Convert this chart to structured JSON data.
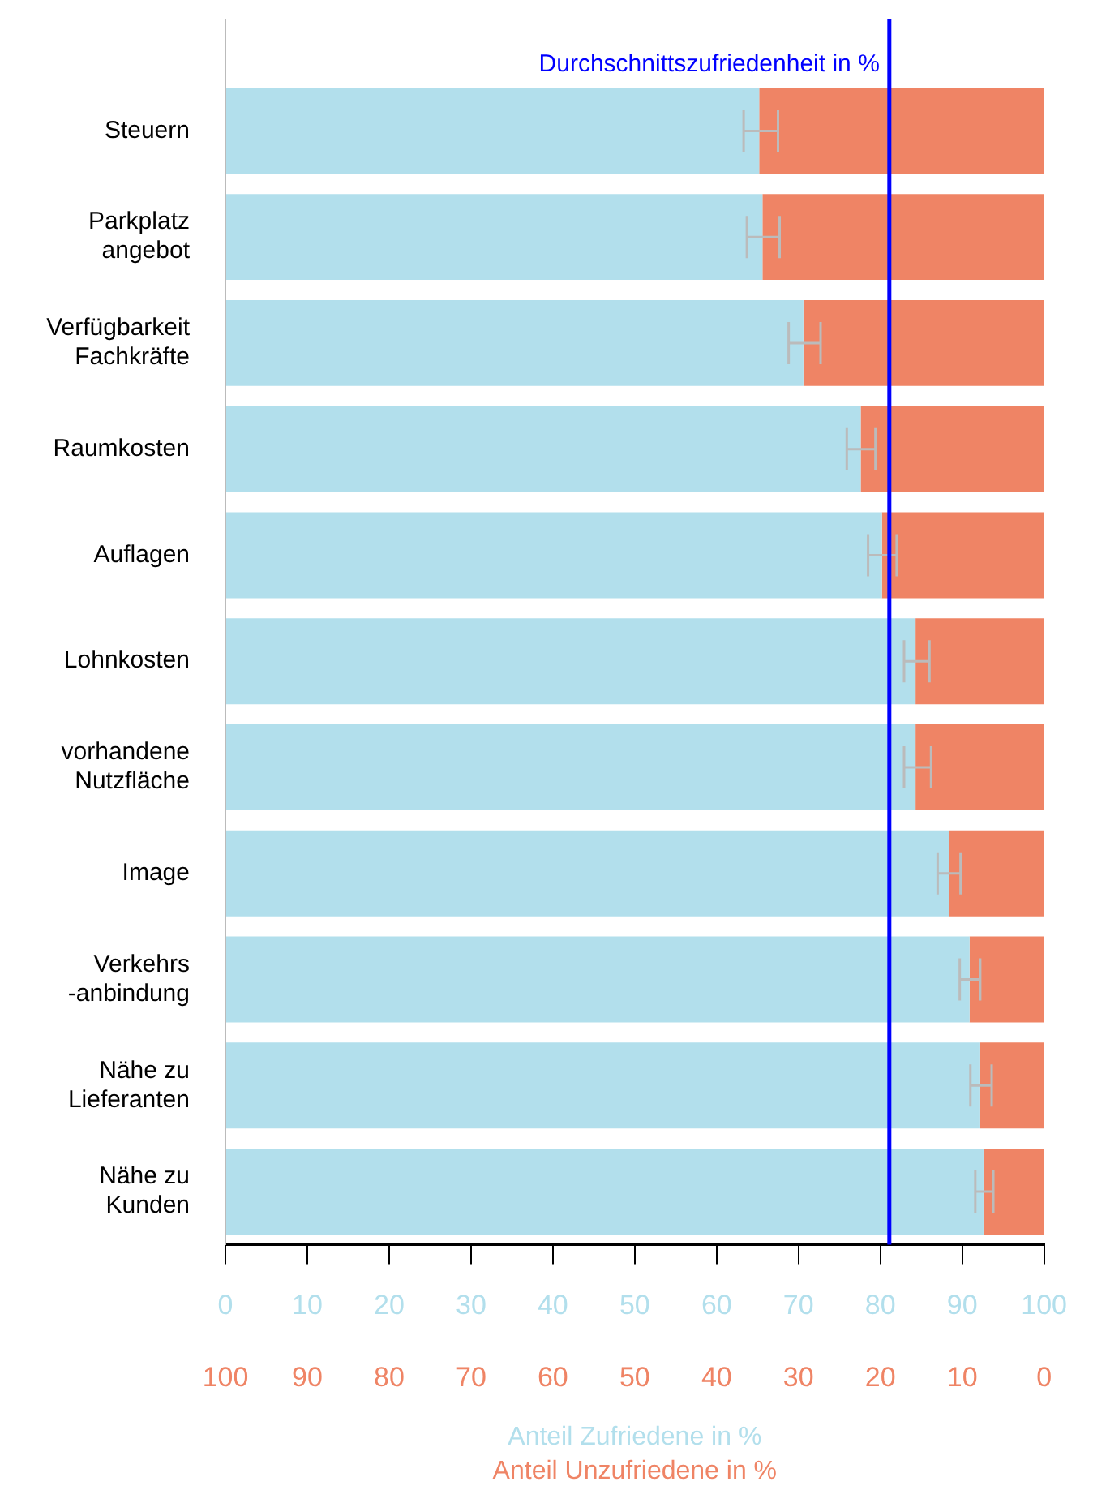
{
  "chart_data": {
    "type": "bar",
    "orientation": "horizontal",
    "stacked": true,
    "categories": [
      "Steuern",
      "Parkplatz\nangebot",
      "Verfügbarkeit\nFachkräfte",
      "Raumkosten",
      "Auflagen",
      "Lohnkosten",
      "vorhandene\nNutzfläche",
      "Image",
      "Verkehrs\n-anbindung",
      "Nähe zu\nLieferanten",
      "Nähe zu\nKunden"
    ],
    "series": [
      {
        "color": "#b2dfec",
        "values": [
          65.2,
          65.6,
          70.6,
          77.6,
          80.2,
          84.3,
          84.3,
          88.4,
          90.9,
          92.2,
          92.6
        ],
        "errors": [
          [
            63.3,
            67.5
          ],
          [
            63.7,
            67.7
          ],
          [
            68.8,
            72.7
          ],
          [
            75.9,
            79.4
          ],
          [
            78.5,
            82.0
          ],
          [
            82.9,
            86.0
          ],
          [
            82.9,
            86.2
          ],
          [
            87.0,
            89.8
          ],
          [
            89.7,
            92.2
          ],
          [
            91.0,
            93.6
          ],
          [
            91.6,
            93.8
          ]
        ]
      },
      {
        "color": "#ef8465",
        "values": [
          34.8,
          34.4,
          29.4,
          22.4,
          19.8,
          15.7,
          15.7,
          11.6,
          9.1,
          7.8,
          7.4
        ]
      }
    ],
    "xlim": [
      0,
      100
    ],
    "xticks": [
      0,
      10,
      20,
      30,
      40,
      50,
      60,
      70,
      80,
      90,
      100
    ],
    "x2lim": [
      100,
      0
    ],
    "x2ticks": [
      100,
      90,
      80,
      70,
      60,
      50,
      40,
      30,
      20,
      10,
      0
    ],
    "xlabel": "Anteil Zufriedene in %",
    "x2label": "Anteil Unzufriedene in %",
    "ref_lines": [
      {
        "axis": "x",
        "value": 81.1,
        "label": "Durchschnittszufriedenheit in %",
        "color": "#0000ff"
      }
    ],
    "grid": false,
    "legend": false
  }
}
